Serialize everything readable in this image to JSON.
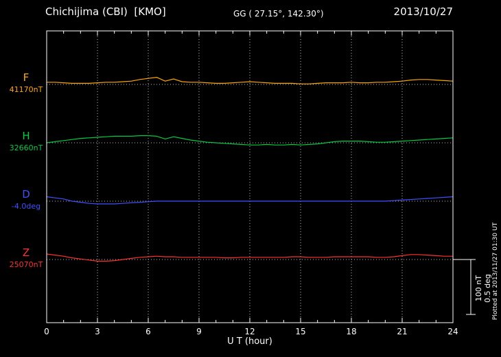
{
  "header": {
    "title": "Chichijima (CBI)  [KMO]",
    "coordinates": "GG ( 27.15°, 142.30°)",
    "date": "2013/10/27"
  },
  "footer": {
    "plotted_at": "Plotted at 2013/11/27 01:30 UT"
  },
  "chart_data": {
    "type": "line",
    "title": "Chichijima (CBI) [KMO] magnetogram",
    "xlabel": "U T (hour)",
    "xlim": [
      0,
      24
    ],
    "x_ticks": [
      0,
      3,
      6,
      9,
      12,
      15,
      18,
      21,
      24
    ],
    "x_start": 0,
    "x_step_hours": 0.5,
    "grid": "vertical-dotted",
    "background": "#000000",
    "axis_color": "#ffffff",
    "legend_position": "left-of-traces",
    "scale_bar": {
      "label_nT": "100 nT",
      "label_deg": "0.5 deg",
      "nT": 100,
      "deg": 0.5
    },
    "series": [
      {
        "id": "F",
        "label": "F",
        "baseline_label": "41170nT",
        "baseline_value": 41170,
        "unit": "nT",
        "color": "#ffa800",
        "offsets": [
          4,
          4,
          3,
          2,
          2,
          2,
          3,
          4,
          4,
          5,
          6,
          9,
          11,
          13,
          6,
          10,
          5,
          4,
          4,
          3,
          2,
          2,
          3,
          4,
          5,
          4,
          3,
          2,
          2,
          2,
          1,
          1,
          2,
          3,
          3,
          3,
          4,
          3,
          3,
          4,
          4,
          5,
          6,
          8,
          9,
          9,
          8,
          7,
          6
        ]
      },
      {
        "id": "H",
        "label": "H",
        "baseline_label": "32660nT",
        "baseline_value": 32660,
        "unit": "nT",
        "color": "#00cc44",
        "offsets": [
          0,
          2,
          4,
          6,
          8,
          9,
          10,
          11,
          12,
          12,
          12,
          13,
          13,
          12,
          7,
          11,
          8,
          5,
          3,
          1,
          0,
          -1,
          -2,
          -3,
          -4,
          -4,
          -3,
          -4,
          -4,
          -3,
          -4,
          -3,
          -2,
          0,
          2,
          3,
          3,
          3,
          2,
          1,
          1,
          2,
          3,
          4,
          5,
          6,
          7,
          8,
          9
        ]
      },
      {
        "id": "D",
        "label": "D",
        "baseline_label": "-4.0deg",
        "baseline_value": -4.0,
        "unit": "deg",
        "color": "#4050ff",
        "offsets": [
          0.04,
          0.03,
          0.02,
          0,
          -0.01,
          -0.02,
          -0.025,
          -0.025,
          -0.025,
          -0.02,
          -0.015,
          -0.01,
          -0.005,
          0,
          0,
          0,
          0,
          0,
          0,
          0,
          0,
          0,
          0,
          0,
          0,
          0,
          0,
          0,
          0,
          0,
          0,
          0,
          0,
          0,
          0,
          0,
          0,
          0,
          0,
          0,
          0,
          0.005,
          0.01,
          0.015,
          0.02,
          0.025,
          0.03,
          0.035,
          0.04
        ]
      },
      {
        "id": "Z",
        "label": "Z",
        "baseline_label": "25070nT",
        "baseline_value": 25070,
        "unit": "nT",
        "color": "#ff3030",
        "offsets": [
          10,
          8,
          6,
          3,
          1,
          -1,
          -3,
          -3,
          -2,
          0,
          2,
          4,
          5,
          6,
          5,
          5,
          4,
          4,
          4,
          4,
          4,
          3,
          3,
          4,
          4,
          4,
          4,
          4,
          4,
          5,
          5,
          4,
          4,
          4,
          5,
          5,
          5,
          5,
          5,
          4,
          4,
          5,
          7,
          9,
          9,
          8,
          7,
          6,
          6
        ]
      }
    ]
  }
}
